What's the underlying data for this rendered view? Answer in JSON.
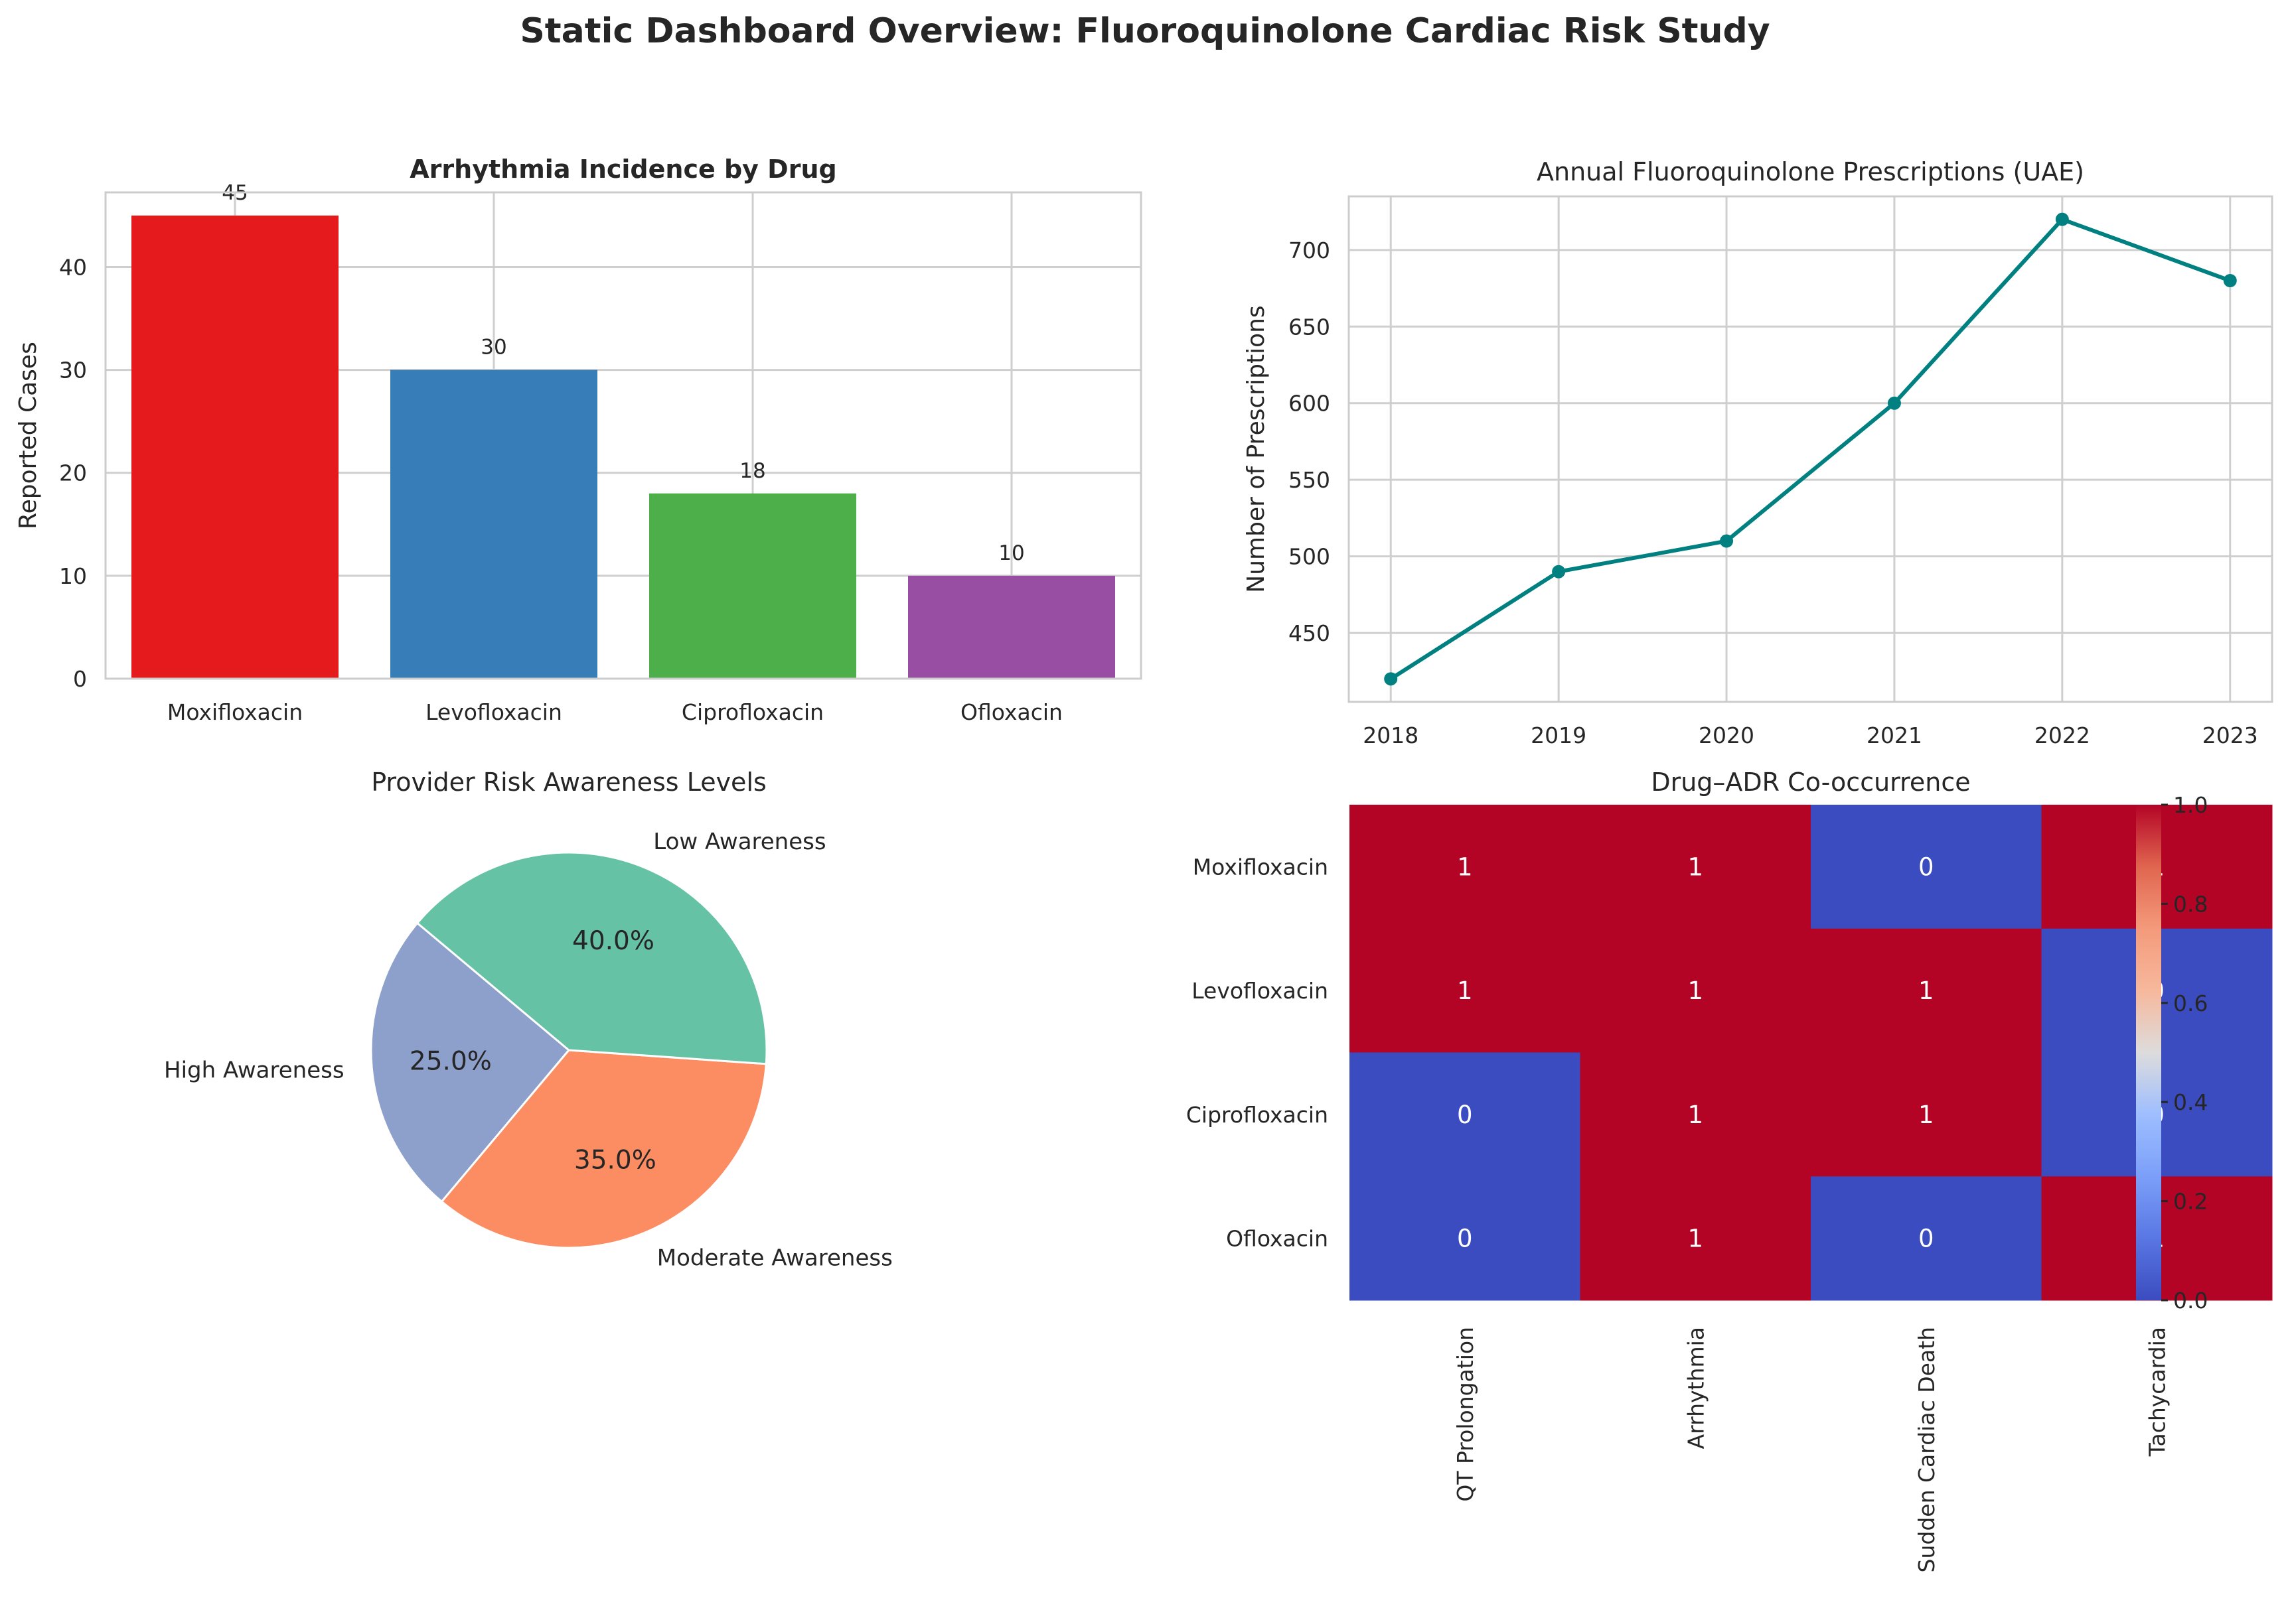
{
  "suptitle": "Static Dashboard Overview: Fluoroquinolone Cardiac Risk Study",
  "chart_data": [
    {
      "id": "bar",
      "type": "bar",
      "title": "Arrhythmia Incidence by Drug",
      "xlabel": "",
      "ylabel": "Reported Cases",
      "categories": [
        "Moxifloxacin",
        "Levofloxacin",
        "Ciprofloxacin",
        "Ofloxacin"
      ],
      "values": [
        45,
        30,
        18,
        10
      ],
      "colors": [
        "#e41a1c",
        "#377eb8",
        "#4daf4a",
        "#984ea3"
      ],
      "data_labels": [
        "45",
        "30",
        "18",
        "10"
      ],
      "ylim": [
        0,
        47.25
      ],
      "yticks": [
        0,
        10,
        20,
        30,
        40
      ],
      "grid": true
    },
    {
      "id": "line",
      "type": "line",
      "title": "Annual Fluoroquinolone Prescriptions (UAE)",
      "xlabel": "",
      "ylabel": "Number of Prescriptions",
      "x": [
        2018,
        2019,
        2020,
        2021,
        2022,
        2023
      ],
      "series": [
        {
          "values": [
            420,
            490,
            510,
            600,
            720,
            680
          ],
          "color": "#008080",
          "marker": "circle"
        }
      ],
      "xlim": [
        2017.75,
        2023.25
      ],
      "ylim": [
        405,
        735
      ],
      "yticks": [
        450,
        500,
        550,
        600,
        650,
        700
      ],
      "grid": true
    },
    {
      "id": "pie",
      "type": "pie",
      "title": "Provider Risk Awareness Levels",
      "labels": [
        "High Awareness",
        "Moderate Awareness",
        "Low Awareness"
      ],
      "values": [
        25.0,
        35.0,
        40.0
      ],
      "pct_labels": [
        "25.0%",
        "35.0%",
        "40.0%"
      ],
      "colors": [
        "#8da0cb",
        "#fc8d62",
        "#66c2a5"
      ],
      "start_angle_deg": 140
    },
    {
      "id": "heatmap",
      "type": "heatmap",
      "title": "Drug–ADR Co-occurrence",
      "rows": [
        "Moxifloxacin",
        "Levofloxacin",
        "Ciprofloxacin",
        "Ofloxacin"
      ],
      "cols": [
        "QT Prolongation",
        "Arrhythmia",
        "Sudden Cardiac Death",
        "Tachycardia"
      ],
      "matrix": [
        [
          1,
          1,
          0,
          1
        ],
        [
          1,
          1,
          1,
          0
        ],
        [
          0,
          1,
          1,
          0
        ],
        [
          0,
          1,
          0,
          1
        ]
      ],
      "colormap": "coolwarm",
      "color_low": "#3b4cc0",
      "color_high": "#b40426",
      "colorbar_range": [
        0.0,
        1.0
      ],
      "colorbar_ticks": [
        "0.0",
        "0.2",
        "0.4",
        "0.6",
        "0.8",
        "1.0"
      ]
    }
  ]
}
